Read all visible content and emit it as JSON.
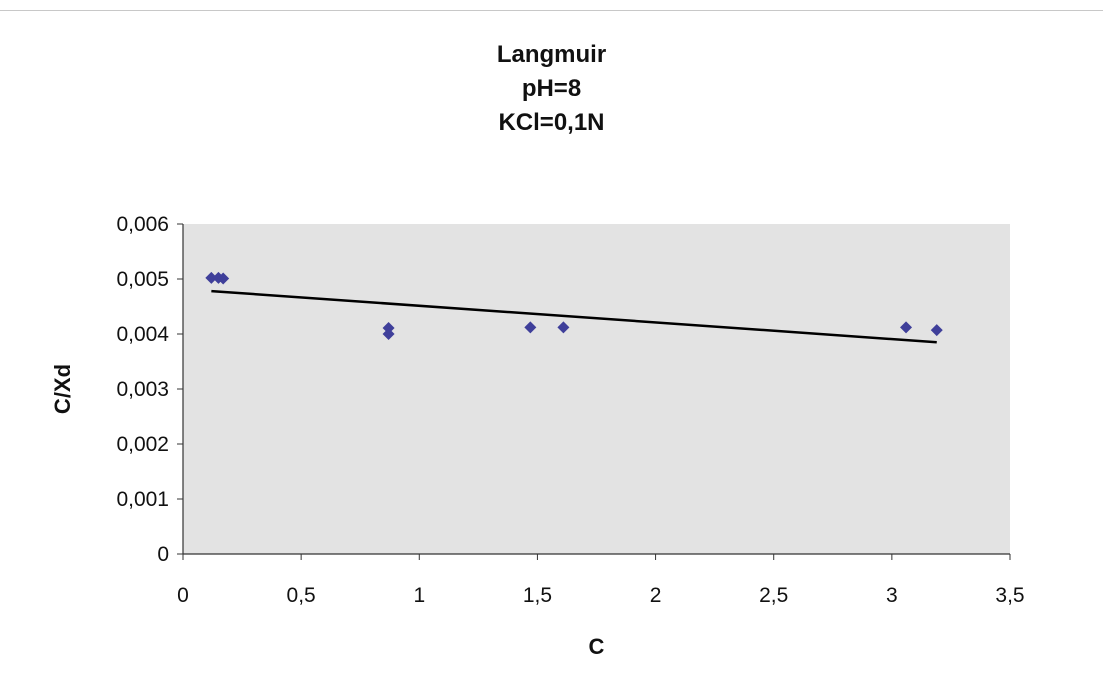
{
  "chart_data": {
    "type": "scatter",
    "title_lines": [
      "Langmuir",
      "pH=8",
      "KCl=0,1N"
    ],
    "xlabel": "C",
    "ylabel": "C/Xd",
    "xlim": [
      0,
      3.5
    ],
    "ylim": [
      0,
      0.006
    ],
    "x_ticks": [
      "0",
      "0,5",
      "1",
      "1,5",
      "2",
      "2,5",
      "3",
      "3,5"
    ],
    "y_ticks": [
      "0",
      "0,001",
      "0,002",
      "0,003",
      "0,004",
      "0,005",
      "0,006"
    ],
    "grid": false,
    "legend": "none",
    "plot_background": "#e3e3e3",
    "marker_color": "#3f3f9a",
    "trendline_color": "#000000",
    "points": [
      {
        "x": 0.12,
        "y": 0.00502
      },
      {
        "x": 0.15,
        "y": 0.00502
      },
      {
        "x": 0.17,
        "y": 0.00501
      },
      {
        "x": 0.87,
        "y": 0.00411
      },
      {
        "x": 0.87,
        "y": 0.004
      },
      {
        "x": 1.47,
        "y": 0.00412
      },
      {
        "x": 1.61,
        "y": 0.00412
      },
      {
        "x": 3.06,
        "y": 0.00412
      },
      {
        "x": 3.19,
        "y": 0.00407
      }
    ],
    "trendline": {
      "x": [
        0.12,
        3.19
      ],
      "y": [
        0.00478,
        0.00385
      ]
    }
  }
}
